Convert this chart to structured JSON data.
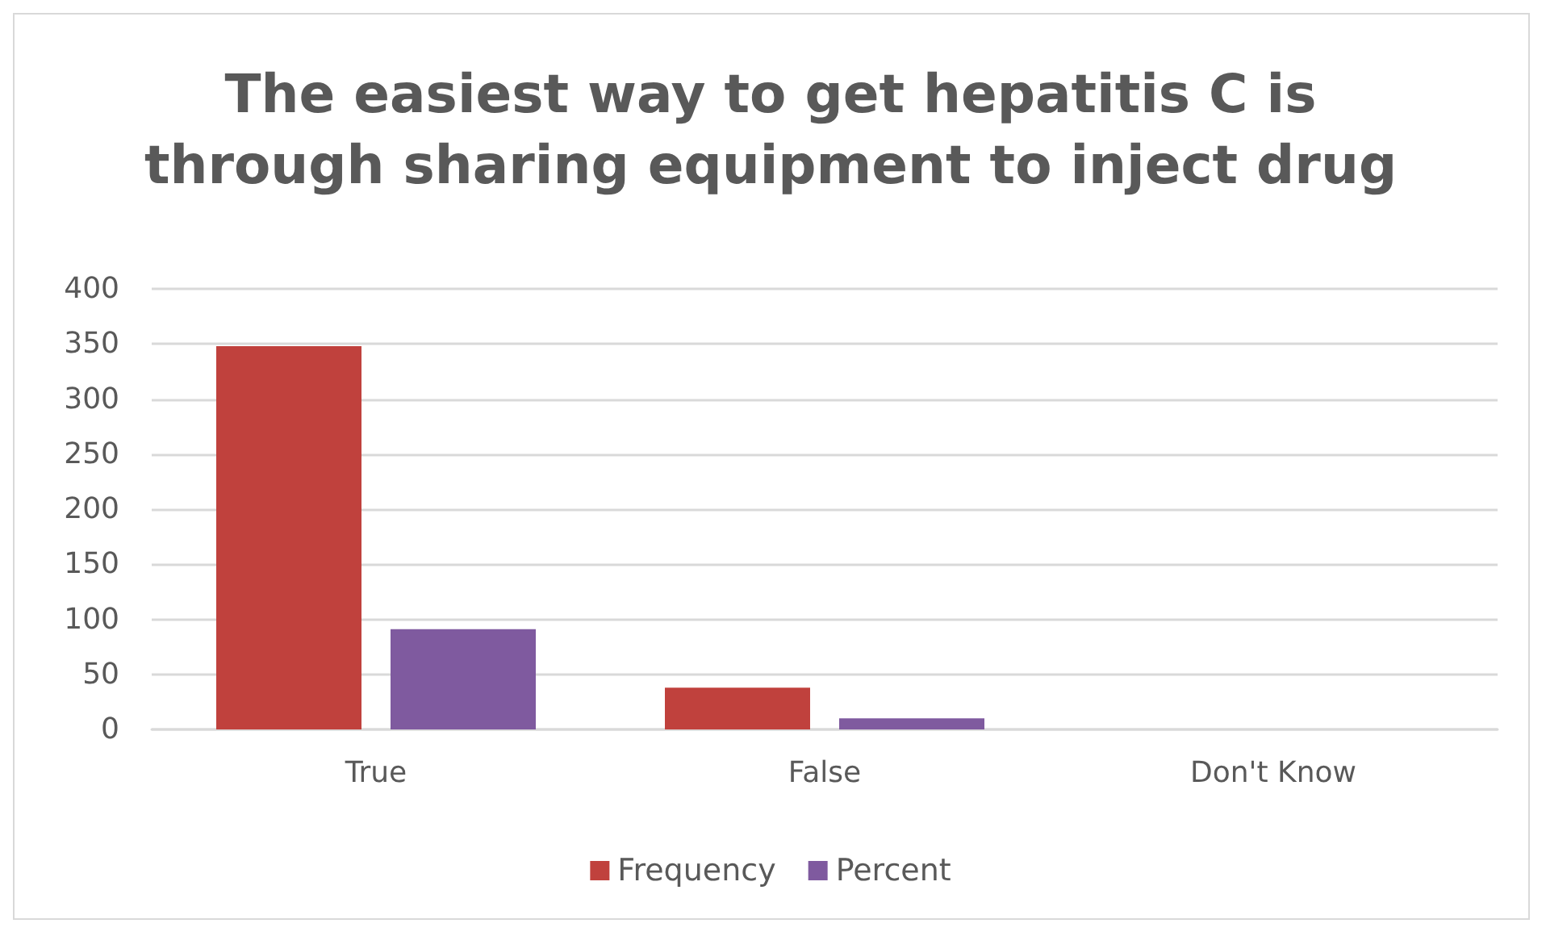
{
  "chart_data": {
    "type": "bar",
    "title": "The easiest way to get hepatitis C is\nthrough sharing equipment to inject drug",
    "categories": [
      "True",
      "False",
      "Don't Know"
    ],
    "series": [
      {
        "name": "Frequency",
        "color": "#c0413d",
        "values": [
          348,
          38,
          0
        ]
      },
      {
        "name": "Percent",
        "color": "#7f5a9f",
        "values": [
          91,
          10,
          0
        ]
      }
    ],
    "ylim": [
      0,
      400
    ],
    "yticks": [
      0,
      50,
      100,
      150,
      200,
      250,
      300,
      350,
      400
    ],
    "grid": "y",
    "legend": "bottom"
  }
}
